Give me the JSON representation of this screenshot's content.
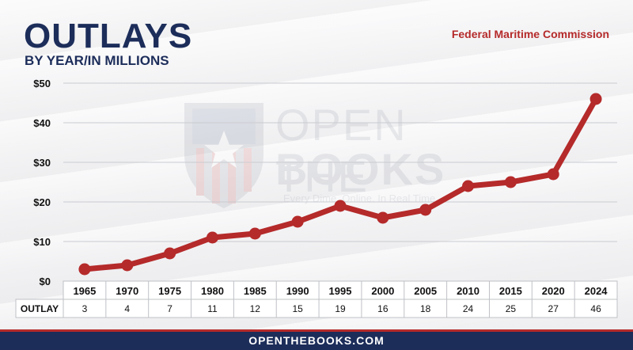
{
  "header": {
    "title": "OUTLAYS",
    "subtitle": "BY YEAR/IN MILLIONS",
    "agency": "Federal Maritime Commission"
  },
  "watermark": {
    "line1": "OPEN THE",
    "line2": "BOOKS",
    "tagline": "Every Dime. Online. In Real Time."
  },
  "footer": {
    "text": "OPENTHEBOOKS.COM"
  },
  "colors": {
    "navy": "#1c2d5a",
    "red": "#b52a2a"
  },
  "chart_data": {
    "type": "line",
    "categories": [
      "1965",
      "1970",
      "1975",
      "1980",
      "1985",
      "1990",
      "1995",
      "2000",
      "2005",
      "2010",
      "2015",
      "2020",
      "2024"
    ],
    "values": [
      3,
      4,
      7,
      11,
      12,
      15,
      19,
      16,
      18,
      24,
      25,
      27,
      46
    ],
    "value_labels": [
      "3",
      "4",
      "7",
      "11",
      "12",
      "15",
      "19",
      "16",
      "18",
      "24",
      "25",
      "27",
      "46"
    ],
    "y_ticks": [
      "$0",
      "$10",
      "$20",
      "$30",
      "$40",
      "$50"
    ],
    "y_tick_values": [
      0,
      10,
      20,
      30,
      40,
      50
    ],
    "ylim": [
      0,
      50
    ],
    "row_label": "OUTLAY",
    "grid": true
  }
}
